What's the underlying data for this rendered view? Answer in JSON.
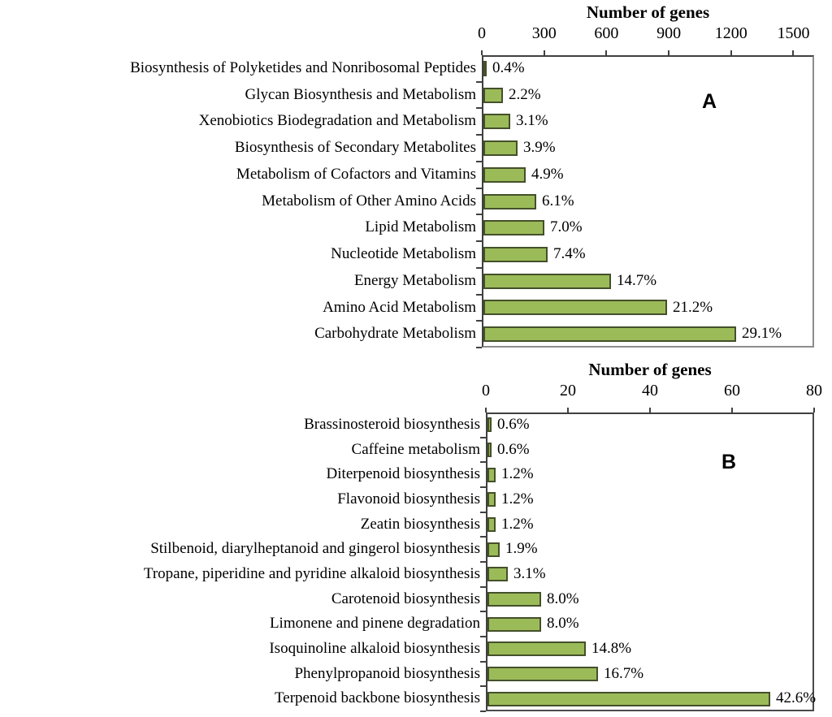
{
  "colors": {
    "bar_fill": "#9bbb59",
    "bar_border": "#44502a",
    "axis_line": "#404040",
    "box_line_a": "#8c8c8c",
    "box_line_b": "#4a4a4a",
    "text": "#000000",
    "background": "#ffffff"
  },
  "chart_data": [
    {
      "type": "bar",
      "orientation": "horizontal",
      "panel": "A",
      "title": "Number of genes",
      "xlabel": "Number of genes",
      "xlim": [
        0,
        1600
      ],
      "xticks": [
        0,
        300,
        600,
        900,
        1200,
        1500
      ],
      "grid": false,
      "legend": null,
      "categories": [
        "Biosynthesis of Polyketides and Nonribosomal Peptides",
        "Glycan Biosynthesis and Metabolism",
        "Xenobiotics Biodegradation and Metabolism",
        "Biosynthesis of Secondary Metabolites",
        "Metabolism of Cofactors and Vitamins",
        "Metabolism of Other Amino Acids",
        "Lipid Metabolism",
        "Nucleotide Metabolism",
        "Energy Metabolism",
        "Amino Acid Metabolism",
        "Carbohydrate Metabolism"
      ],
      "values_genes_estimated": [
        17,
        92,
        130,
        163,
        205,
        255,
        293,
        309,
        614,
        886,
        1216
      ],
      "bar_labels_pct": [
        "0.4%",
        "2.2%",
        "3.1%",
        "3.9%",
        "4.9%",
        "6.1%",
        "7.0%",
        "7.4%",
        "14.7%",
        "21.2%",
        "29.1%"
      ]
    },
    {
      "type": "bar",
      "orientation": "horizontal",
      "panel": "B",
      "title": "Number of genes",
      "xlabel": "Number of genes",
      "xlim": [
        0,
        80
      ],
      "xticks": [
        0,
        20,
        40,
        60,
        80
      ],
      "grid": false,
      "legend": null,
      "categories": [
        "Brassinosteroid biosynthesis",
        "Caffeine metabolism",
        "Diterpenoid biosynthesis",
        "Flavonoid biosynthesis",
        "Zeatin biosynthesis",
        "Stilbenoid, diarylheptanoid and gingerol biosynthesis",
        "Tropane, piperidine and pyridine alkaloid biosynthesis",
        "Carotenoid biosynthesis",
        "Limonene and pinene degradation",
        "Isoquinoline alkaloid biosynthesis",
        "Phenylpropanoid biosynthesis",
        "Terpenoid backbone biosynthesis"
      ],
      "values_genes_estimated": [
        1,
        1,
        2,
        2,
        2,
        3,
        5,
        13,
        13,
        24,
        27,
        69
      ],
      "bar_labels_pct": [
        "0.6%",
        "0.6%",
        "1.2%",
        "1.2%",
        "1.2%",
        "1.9%",
        "3.1%",
        "8.0%",
        "8.0%",
        "14.8%",
        "16.7%",
        "42.6%"
      ]
    }
  ]
}
